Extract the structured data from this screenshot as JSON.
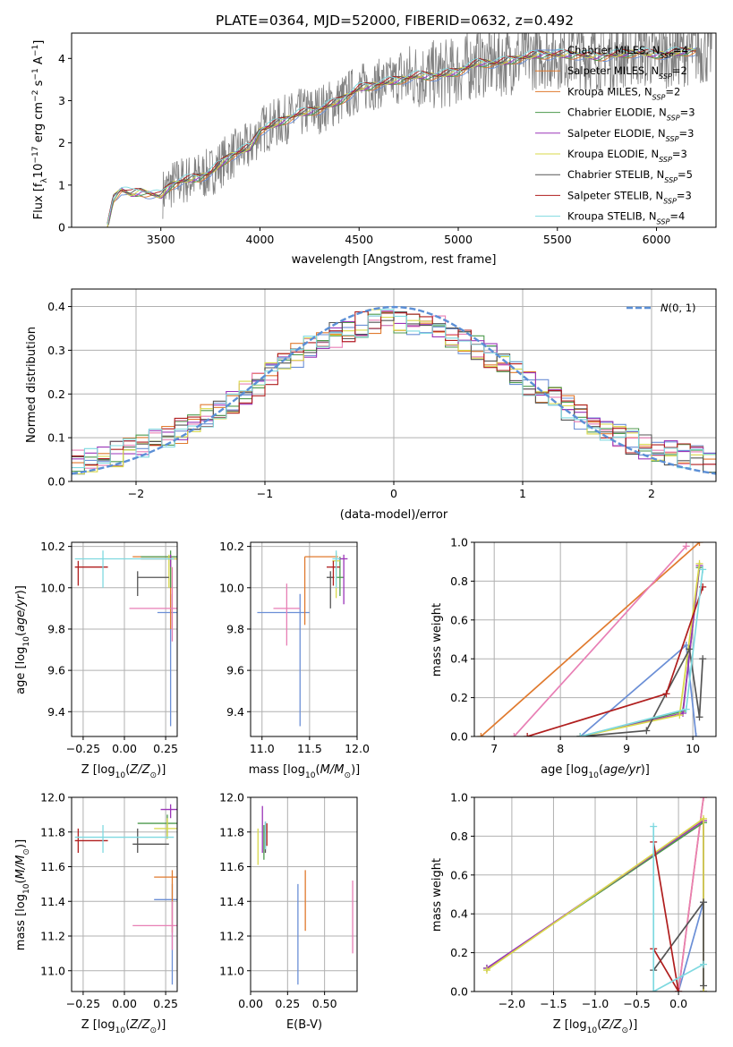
{
  "figure": {
    "title": "PLATE=0364, MJD=52000, FIBERID=0632, z=0.492"
  },
  "colors": {
    "Chabrier MILES": "#6b8fd6",
    "Salpeter MILES": "#e07a2e",
    "Kroupa MILES": "#e07a2e",
    "Chabrier ELODIE": "#4d9a4d",
    "Salpeter ELODIE": "#9b35b8",
    "Kroupa ELODIE": "#d8d84a",
    "Chabrier STELIB": "#555555",
    "Salpeter STELIB": "#b01e1e",
    "Kroupa STELIB": "#7fd9e0",
    "data": "#808080",
    "gaussian": "#5b8fd6",
    "pink": "#e87fb5"
  },
  "chart_data": [
    {
      "id": "spectrum",
      "type": "line",
      "title": "PLATE=0364, MJD=52000, FIBERID=0632, z=0.492",
      "xlabel": "wavelength [Angstrom, rest frame]",
      "ylabel": "Flux [f_λ 10^-17 erg cm^-2 s^-1 A^-1]",
      "xlim": [
        3050,
        6300
      ],
      "ylim": [
        0,
        4.6
      ],
      "xticks": [
        3500,
        4000,
        4500,
        5000,
        5500,
        6000
      ],
      "yticks": [
        0,
        1,
        2,
        3,
        4
      ],
      "grid": false,
      "legend_position": "top-right",
      "legend": [
        "Chabrier MILES, N_SSP=4",
        "Salpeter MILES, N_SSP=2",
        "Kroupa MILES, N_SSP=2",
        "Chabrier ELODIE, N_SSP=3",
        "Salpeter ELODIE, N_SSP=3",
        "Kroupa ELODIE, N_SSP=3",
        "Chabrier STELIB, N_SSP=5",
        "Salpeter STELIB, N_SSP=3",
        "Kroupa STELIB, N_SSP=4"
      ],
      "continuum": {
        "x": [
          3230,
          3260,
          3300,
          3350,
          3400,
          3450,
          3500,
          3550,
          3600,
          3650,
          3700,
          3750,
          3800,
          3850,
          3900,
          3950,
          4000,
          4100,
          4200,
          4300,
          4400,
          4500,
          4600,
          4700,
          4800,
          4900,
          5000,
          5100,
          5200,
          5300,
          5400,
          5500,
          5600,
          5700,
          5800,
          5900,
          6000,
          6100,
          6200
        ],
        "y": [
          0.0,
          0.7,
          0.9,
          0.8,
          0.85,
          0.8,
          0.75,
          1.0,
          1.1,
          1.15,
          1.2,
          1.3,
          1.5,
          1.7,
          1.8,
          1.9,
          2.3,
          2.5,
          2.7,
          2.8,
          3.0,
          3.3,
          3.4,
          3.5,
          3.6,
          3.6,
          3.7,
          3.9,
          3.9,
          4.0,
          4.1,
          4.1,
          4.1,
          4.05,
          4.1,
          4.15,
          4.1,
          4.15,
          4.2
        ]
      }
    },
    {
      "id": "residuals",
      "type": "line",
      "xlabel": "(data-model)/error",
      "ylabel": "Normed distribution",
      "xlim": [
        -2.5,
        2.5
      ],
      "ylim": [
        0,
        0.44
      ],
      "xticks": [
        -2,
        -1,
        0,
        1,
        2
      ],
      "yticks": [
        0.0,
        0.1,
        0.2,
        0.3,
        0.4
      ],
      "grid": true,
      "legend_position": "top-right",
      "legend": [
        "N(0,1)"
      ],
      "gaussian": {
        "mean": 0,
        "sigma": 1
      }
    },
    {
      "id": "age_vs_Z",
      "type": "scatter",
      "xlabel": "Z [log10(Z/Z⊙)]",
      "ylabel": "age [log10(age/yr)]",
      "xlim": [
        -0.32,
        0.32
      ],
      "ylim": [
        9.28,
        10.22
      ],
      "xticks": [
        -0.25,
        0.0,
        0.25
      ],
      "yticks": [
        9.4,
        9.6,
        9.8,
        10.0,
        10.2
      ],
      "grid": true
    },
    {
      "id": "age_vs_mass",
      "type": "scatter",
      "xlabel": "mass [log10(M/M⊙)]",
      "xlim": [
        10.88,
        12.0
      ],
      "ylim": [
        9.28,
        10.22
      ],
      "xticks": [
        11.0,
        11.5,
        12.0
      ],
      "yticks": [
        9.4,
        9.6,
        9.8,
        10.0,
        10.2
      ],
      "grid": true
    },
    {
      "id": "weight_vs_age",
      "type": "line",
      "xlabel": "age [log10(age/yr)]",
      "ylabel": "mass weight",
      "xlim": [
        6.7,
        10.35
      ],
      "ylim": [
        0,
        1.0
      ],
      "xticks": [
        7,
        8,
        9,
        10
      ],
      "yticks": [
        0.0,
        0.2,
        0.4,
        0.6,
        0.8,
        1.0
      ],
      "grid": true
    },
    {
      "id": "mass_vs_Z",
      "type": "scatter",
      "xlabel": "Z [log10(Z/Z⊙)]",
      "ylabel": "mass [log10(M/M⊙)]",
      "xlim": [
        -0.32,
        0.32
      ],
      "ylim": [
        10.88,
        12.0
      ],
      "xticks": [
        -0.25,
        0.0,
        0.25
      ],
      "yticks": [
        11.0,
        11.2,
        11.4,
        11.6,
        11.8,
        12.0
      ],
      "grid": true
    },
    {
      "id": "mass_vs_ebv",
      "type": "scatter",
      "xlabel": "E(B-V)",
      "xlim": [
        0.0,
        0.72
      ],
      "ylim": [
        10.88,
        12.0
      ],
      "xticks": [
        0.0,
        0.25,
        0.5
      ],
      "yticks": [
        11.0,
        11.2,
        11.4,
        11.6,
        11.8,
        12.0
      ],
      "grid": true
    },
    {
      "id": "weight_vs_Z",
      "type": "line",
      "xlabel": "Z [log10(Z/Z⊙)]",
      "ylabel": "mass weight",
      "xlim": [
        -2.45,
        0.45
      ],
      "ylim": [
        0,
        1.0
      ],
      "xticks": [
        -2.0,
        -1.5,
        -1.0,
        -0.5,
        0.0
      ],
      "yticks": [
        0.0,
        0.2,
        0.4,
        0.6,
        0.8,
        1.0
      ],
      "grid": true
    }
  ]
}
